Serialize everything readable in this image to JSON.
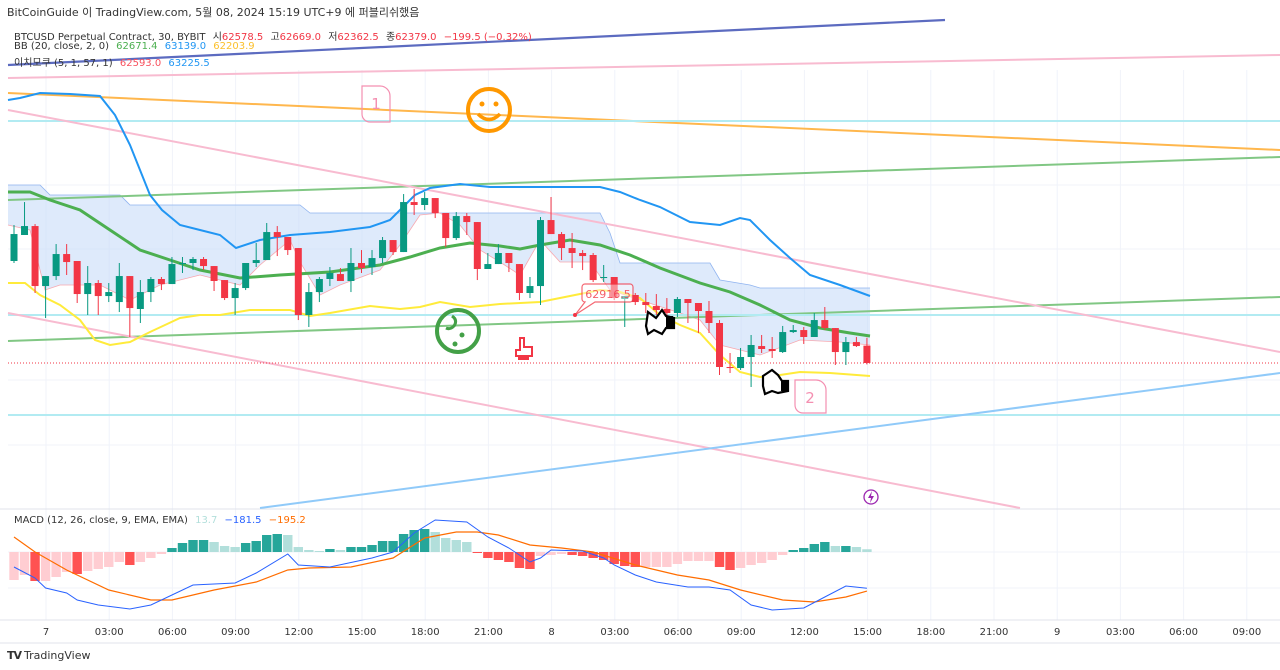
{
  "attribution": "BitCoinGuide 이 TradingView.com, 5월 08, 2024 15:19 UTC+9 에 퍼블리쉬했음",
  "legend": {
    "symbol": "BTCUSD Perpetual Contract, 30, BYBIT",
    "open_label": "시",
    "open": "62578.5",
    "high_label": "고",
    "high": "62669.0",
    "low_label": "저",
    "low": "62362.5",
    "close_label": "종",
    "close": "62379.0",
    "change": "−199.5 (−0.32%)",
    "bb_label": "BB (20, close, 2, 0)",
    "bb_basis": "62671.4",
    "bb_upper": "63139.0",
    "bb_lower": "62203.9",
    "ichimoku_label": "이치모쿠 (5, 1, 57, 1)",
    "ichimoku_a": "62593.0",
    "ichimoku_b": "63225.5"
  },
  "macd_legend": {
    "label": "MACD (12, 26, close, 9, EMA, EMA)",
    "hist": "13.7",
    "macd": "−181.5",
    "signal": "−195.2"
  },
  "annotations": {
    "price_label": "62916.5",
    "callout_1": "1",
    "callout_2": "2"
  },
  "footer": {
    "logo": "TradingView"
  },
  "colors": {
    "up": "#089981",
    "down": "#f23645",
    "bb_basis": "#4caf50",
    "bb_upper": "#2196f3",
    "bb_lower": "#ffeb3b",
    "macd": "#2962ff",
    "signal": "#ff6d00",
    "cloud": "#c8dcf8"
  },
  "chart_data": [
    {
      "type": "candlestick",
      "symbol": "BTCUSD Perpetual Contract",
      "interval": "30",
      "start": "6 22:30",
      "x_ticks": [
        "7",
        "03:00",
        "06:00",
        "09:00",
        "12:00",
        "15:00",
        "18:00",
        "21:00",
        "8",
        "03:00",
        "06:00",
        "09:00",
        "12:00",
        "15:00",
        "18:00",
        "21:00",
        "9",
        "03:00",
        "06:00",
        "09:00"
      ],
      "last_price": 62379.0,
      "candles": [
        [
          63552,
          63966,
          63529,
          63862
        ],
        [
          63851,
          64230,
          63851,
          63954
        ],
        [
          63954,
          63977,
          63184,
          63264
        ],
        [
          63264,
          63379,
          62896,
          63379
        ],
        [
          63379,
          63747,
          63333,
          63632
        ],
        [
          63632,
          63747,
          63391,
          63540
        ],
        [
          63552,
          63552,
          63069,
          63172
        ],
        [
          63172,
          63494,
          62931,
          63299
        ],
        [
          63299,
          63333,
          62931,
          63149
        ],
        [
          63149,
          63299,
          63080,
          63195
        ],
        [
          63080,
          63529,
          62965,
          63379
        ],
        [
          63379,
          63379,
          62678,
          63011
        ],
        [
          63000,
          63333,
          62839,
          63195
        ],
        [
          63195,
          63368,
          63080,
          63345
        ],
        [
          63345,
          63368,
          63218,
          63287
        ],
        [
          63287,
          63598,
          63287,
          63517
        ],
        [
          63517,
          63598,
          63414,
          63529
        ],
        [
          63529,
          63598,
          63448,
          63575
        ],
        [
          63575,
          63598,
          63448,
          63494
        ],
        [
          63494,
          63494,
          63207,
          63322
        ],
        [
          63333,
          63333,
          63103,
          63126
        ],
        [
          63126,
          63299,
          62931,
          63241
        ],
        [
          63241,
          63529,
          63218,
          63529
        ],
        [
          63529,
          63759,
          63483,
          63563
        ],
        [
          63563,
          63989,
          63563,
          63885
        ],
        [
          63885,
          63954,
          63609,
          63828
        ],
        [
          63828,
          63828,
          63621,
          63678
        ],
        [
          63701,
          63701,
          62873,
          62931
        ],
        [
          62931,
          63299,
          62793,
          63195
        ],
        [
          63195,
          63368,
          63080,
          63345
        ],
        [
          63345,
          63483,
          63264,
          63414
        ],
        [
          63402,
          63471,
          63322,
          63322
        ],
        [
          63322,
          63701,
          63195,
          63529
        ],
        [
          63529,
          63678,
          63414,
          63471
        ],
        [
          63483,
          63678,
          63391,
          63586
        ],
        [
          63586,
          63828,
          63529,
          63793
        ],
        [
          63793,
          63793,
          63621,
          63655
        ],
        [
          63655,
          64322,
          63655,
          64230
        ],
        [
          64230,
          64380,
          64081,
          64196
        ],
        [
          64196,
          64345,
          64138,
          64276
        ],
        [
          64276,
          64276,
          64046,
          64104
        ],
        [
          64104,
          64104,
          63713,
          63816
        ],
        [
          63816,
          64115,
          63793,
          64069
        ],
        [
          64069,
          64104,
          63851,
          64000
        ],
        [
          64000,
          64000,
          63333,
          63460
        ],
        [
          63460,
          63644,
          63460,
          63517
        ],
        [
          63517,
          63747,
          63517,
          63644
        ],
        [
          63644,
          63644,
          63425,
          63529
        ],
        [
          63517,
          63517,
          63103,
          63184
        ],
        [
          63184,
          63368,
          63126,
          63264
        ],
        [
          63264,
          64058,
          63046,
          64023
        ],
        [
          64023,
          64288,
          63862,
          63862
        ],
        [
          63862,
          63885,
          63563,
          63701
        ],
        [
          63701,
          63874,
          63471,
          63644
        ],
        [
          63644,
          63678,
          63448,
          63609
        ],
        [
          63621,
          63644,
          63310,
          63333
        ],
        [
          63356,
          63506,
          63310,
          63368
        ],
        [
          63368,
          63368,
          63103,
          63126
        ],
        [
          63115,
          63149,
          62793,
          63149
        ],
        [
          63161,
          63184,
          63046,
          63080
        ],
        [
          63080,
          63184,
          62954,
          63046
        ],
        [
          63034,
          63172,
          62931,
          62988
        ],
        [
          63000,
          63126,
          62931,
          62954
        ],
        [
          62954,
          63138,
          62908,
          63115
        ],
        [
          63115,
          63115,
          62839,
          63069
        ],
        [
          63069,
          63069,
          62724,
          62977
        ],
        [
          62977,
          63092,
          62724,
          62839
        ],
        [
          62839,
          62873,
          62241,
          62333
        ],
        [
          62333,
          62494,
          62264,
          62321
        ],
        [
          62321,
          62552,
          62299,
          62448
        ],
        [
          62448,
          62701,
          62103,
          62586
        ],
        [
          62574,
          62701,
          62494,
          62540
        ],
        [
          62540,
          62678,
          62437,
          62517
        ],
        [
          62505,
          62805,
          62494,
          62735
        ],
        [
          62735,
          62816,
          62724,
          62758
        ],
        [
          62758,
          62793,
          62598,
          62678
        ],
        [
          62678,
          62954,
          62678,
          62873
        ],
        [
          62873,
          63023,
          62758,
          62781
        ],
        [
          62781,
          62781,
          62356,
          62505
        ],
        [
          62505,
          62678,
          62356,
          62620
        ],
        [
          62620,
          62678,
          62563,
          62574
        ],
        [
          62578.5,
          62669.0,
          62362.5,
          62379.0
        ]
      ]
    },
    {
      "type": "macd",
      "title": "MACD (12, 26, close, 9, EMA, EMA)",
      "histogram": [
        -140,
        -115,
        -145,
        -145,
        -125,
        -100,
        -110,
        -95,
        -85,
        -75,
        -50,
        -65,
        -50,
        -30,
        -10,
        20,
        45,
        60,
        60,
        50,
        30,
        25,
        45,
        55,
        85,
        90,
        85,
        25,
        10,
        5,
        15,
        10,
        25,
        25,
        35,
        55,
        55,
        90,
        110,
        115,
        100,
        70,
        60,
        50,
        -5,
        -30,
        -40,
        -50,
        -80,
        -85,
        -20,
        -15,
        -10,
        -15,
        -20,
        -30,
        -40,
        -60,
        -70,
        -75,
        -75,
        -75,
        -75,
        -60,
        -45,
        -45,
        -45,
        -75,
        -90,
        -80,
        -65,
        -55,
        -40,
        -15,
        10,
        20,
        40,
        50,
        30,
        30,
        25,
        13.7
      ],
      "macd_line": [
        [
          "6 22:30",
          -75
        ],
        [
          "6 23:30",
          -130
        ],
        [
          "7 00:00",
          -180
        ],
        [
          "7 01:00",
          -205
        ],
        [
          "7 01:30",
          -240
        ],
        [
          "7 02:30",
          -265
        ],
        [
          "7 04:00",
          -285
        ],
        [
          "7 05:00",
          -265
        ],
        [
          "7 06:00",
          -215
        ],
        [
          "7 07:00",
          -165
        ],
        [
          "7 09:00",
          -155
        ],
        [
          "7 10:00",
          -105
        ],
        [
          "7 11:30",
          -10
        ],
        [
          "7 12:00",
          -65
        ],
        [
          "7 13:30",
          -75
        ],
        [
          "7 15:30",
          -30
        ],
        [
          "7 16:30",
          0
        ],
        [
          "7 17:30",
          95
        ],
        [
          "7 18:30",
          160
        ],
        [
          "7 20:00",
          150
        ],
        [
          "7 21:00",
          75
        ],
        [
          "7 22:00",
          20
        ],
        [
          "7 23:00",
          -50
        ],
        [
          "7 23:30",
          -30
        ],
        [
          "8 00:00",
          10
        ],
        [
          "8 01:30",
          5
        ],
        [
          "8 02:30",
          -30
        ],
        [
          "8 03:00",
          -65
        ],
        [
          "8 04:00",
          -115
        ],
        [
          "8 05:00",
          -150
        ],
        [
          "8 06:30",
          -175
        ],
        [
          "8 07:30",
          -175
        ],
        [
          "8 08:30",
          -190
        ],
        [
          "8 09:30",
          -265
        ],
        [
          "8 10:30",
          -290
        ],
        [
          "8 12:00",
          -280
        ],
        [
          "8 13:00",
          -225
        ],
        [
          "8 14:00",
          -170
        ],
        [
          "8 15:00",
          -181.5
        ]
      ],
      "signal_line": [
        [
          "6 22:30",
          75
        ],
        [
          "6 23:30",
          0
        ],
        [
          "7 01:00",
          -90
        ],
        [
          "7 03:00",
          -190
        ],
        [
          "7 05:00",
          -240
        ],
        [
          "7 06:00",
          -240
        ],
        [
          "7 08:00",
          -190
        ],
        [
          "7 10:00",
          -150
        ],
        [
          "7 11:30",
          -90
        ],
        [
          "7 12:30",
          -80
        ],
        [
          "7 14:30",
          -75
        ],
        [
          "7 16:30",
          -30
        ],
        [
          "7 18:00",
          70
        ],
        [
          "7 19:30",
          100
        ],
        [
          "7 20:30",
          100
        ],
        [
          "7 21:30",
          85
        ],
        [
          "7 23:00",
          35
        ],
        [
          "8 00:30",
          20
        ],
        [
          "8 02:00",
          0
        ],
        [
          "8 04:00",
          -65
        ],
        [
          "8 06:00",
          -115
        ],
        [
          "8 07:30",
          -140
        ],
        [
          "8 09:00",
          -190
        ],
        [
          "8 11:00",
          -240
        ],
        [
          "8 12:30",
          -250
        ],
        [
          "8 14:00",
          -225
        ],
        [
          "8 15:00",
          -195.2
        ]
      ]
    }
  ]
}
